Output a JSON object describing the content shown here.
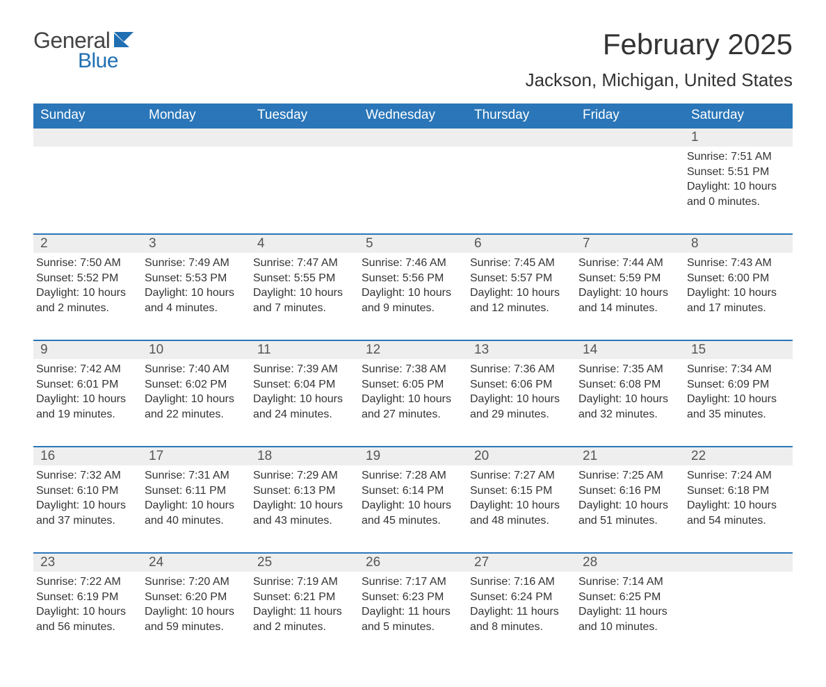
{
  "logo": {
    "text1": "General",
    "text2": "Blue",
    "flag_color": "#1f6fb2",
    "text1_color": "#444444"
  },
  "title": "February 2025",
  "location": "Jackson, Michigan, United States",
  "colors": {
    "header_bg": "#2a76b8",
    "header_text": "#ffffff",
    "daynum_bg": "#eeeeee",
    "daynum_border": "#2a76b8",
    "body_text": "#333333",
    "page_bg": "#ffffff"
  },
  "fonts": {
    "title_size": 42,
    "location_size": 26,
    "header_size": 19,
    "daynum_size": 19,
    "body_size": 16
  },
  "weekdays": [
    "Sunday",
    "Monday",
    "Tuesday",
    "Wednesday",
    "Thursday",
    "Friday",
    "Saturday"
  ],
  "labels": {
    "sunrise": "Sunrise: ",
    "sunset": "Sunset: ",
    "daylight": "Daylight: "
  },
  "weeks": [
    [
      null,
      null,
      null,
      null,
      null,
      null,
      {
        "n": "1",
        "sunrise": "7:51 AM",
        "sunset": "5:51 PM",
        "daylight": "10 hours and 0 minutes."
      }
    ],
    [
      {
        "n": "2",
        "sunrise": "7:50 AM",
        "sunset": "5:52 PM",
        "daylight": "10 hours and 2 minutes."
      },
      {
        "n": "3",
        "sunrise": "7:49 AM",
        "sunset": "5:53 PM",
        "daylight": "10 hours and 4 minutes."
      },
      {
        "n": "4",
        "sunrise": "7:47 AM",
        "sunset": "5:55 PM",
        "daylight": "10 hours and 7 minutes."
      },
      {
        "n": "5",
        "sunrise": "7:46 AM",
        "sunset": "5:56 PM",
        "daylight": "10 hours and 9 minutes."
      },
      {
        "n": "6",
        "sunrise": "7:45 AM",
        "sunset": "5:57 PM",
        "daylight": "10 hours and 12 minutes."
      },
      {
        "n": "7",
        "sunrise": "7:44 AM",
        "sunset": "5:59 PM",
        "daylight": "10 hours and 14 minutes."
      },
      {
        "n": "8",
        "sunrise": "7:43 AM",
        "sunset": "6:00 PM",
        "daylight": "10 hours and 17 minutes."
      }
    ],
    [
      {
        "n": "9",
        "sunrise": "7:42 AM",
        "sunset": "6:01 PM",
        "daylight": "10 hours and 19 minutes."
      },
      {
        "n": "10",
        "sunrise": "7:40 AM",
        "sunset": "6:02 PM",
        "daylight": "10 hours and 22 minutes."
      },
      {
        "n": "11",
        "sunrise": "7:39 AM",
        "sunset": "6:04 PM",
        "daylight": "10 hours and 24 minutes."
      },
      {
        "n": "12",
        "sunrise": "7:38 AM",
        "sunset": "6:05 PM",
        "daylight": "10 hours and 27 minutes."
      },
      {
        "n": "13",
        "sunrise": "7:36 AM",
        "sunset": "6:06 PM",
        "daylight": "10 hours and 29 minutes."
      },
      {
        "n": "14",
        "sunrise": "7:35 AM",
        "sunset": "6:08 PM",
        "daylight": "10 hours and 32 minutes."
      },
      {
        "n": "15",
        "sunrise": "7:34 AM",
        "sunset": "6:09 PM",
        "daylight": "10 hours and 35 minutes."
      }
    ],
    [
      {
        "n": "16",
        "sunrise": "7:32 AM",
        "sunset": "6:10 PM",
        "daylight": "10 hours and 37 minutes."
      },
      {
        "n": "17",
        "sunrise": "7:31 AM",
        "sunset": "6:11 PM",
        "daylight": "10 hours and 40 minutes."
      },
      {
        "n": "18",
        "sunrise": "7:29 AM",
        "sunset": "6:13 PM",
        "daylight": "10 hours and 43 minutes."
      },
      {
        "n": "19",
        "sunrise": "7:28 AM",
        "sunset": "6:14 PM",
        "daylight": "10 hours and 45 minutes."
      },
      {
        "n": "20",
        "sunrise": "7:27 AM",
        "sunset": "6:15 PM",
        "daylight": "10 hours and 48 minutes."
      },
      {
        "n": "21",
        "sunrise": "7:25 AM",
        "sunset": "6:16 PM",
        "daylight": "10 hours and 51 minutes."
      },
      {
        "n": "22",
        "sunrise": "7:24 AM",
        "sunset": "6:18 PM",
        "daylight": "10 hours and 54 minutes."
      }
    ],
    [
      {
        "n": "23",
        "sunrise": "7:22 AM",
        "sunset": "6:19 PM",
        "daylight": "10 hours and 56 minutes."
      },
      {
        "n": "24",
        "sunrise": "7:20 AM",
        "sunset": "6:20 PM",
        "daylight": "10 hours and 59 minutes."
      },
      {
        "n": "25",
        "sunrise": "7:19 AM",
        "sunset": "6:21 PM",
        "daylight": "11 hours and 2 minutes."
      },
      {
        "n": "26",
        "sunrise": "7:17 AM",
        "sunset": "6:23 PM",
        "daylight": "11 hours and 5 minutes."
      },
      {
        "n": "27",
        "sunrise": "7:16 AM",
        "sunset": "6:24 PM",
        "daylight": "11 hours and 8 minutes."
      },
      {
        "n": "28",
        "sunrise": "7:14 AM",
        "sunset": "6:25 PM",
        "daylight": "11 hours and 10 minutes."
      },
      null
    ]
  ]
}
